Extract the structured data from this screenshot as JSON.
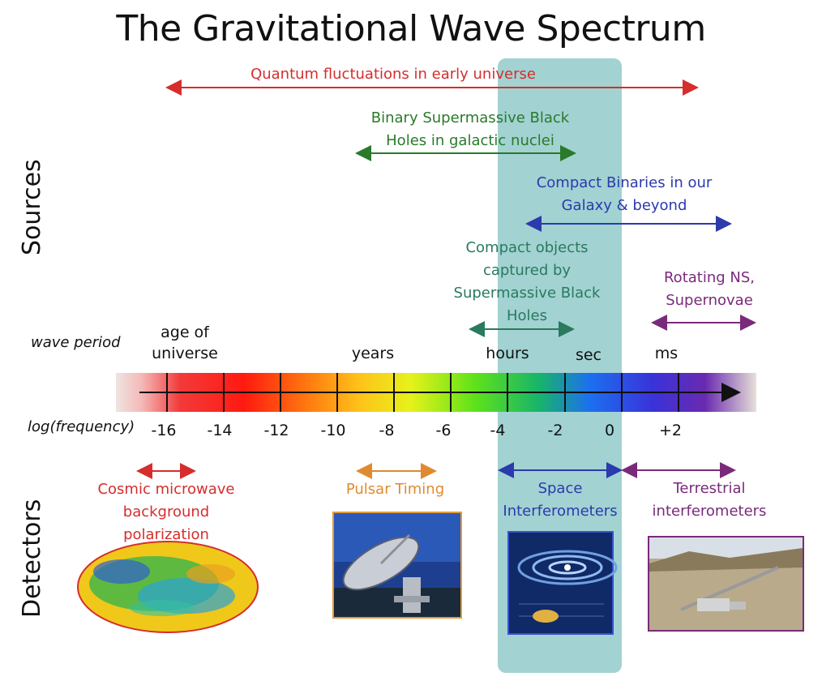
{
  "title": "The Gravitational Wave Spectrum",
  "axis_labels": {
    "sources": "Sources",
    "detectors": "Detectors",
    "wave_period": "wave period",
    "log_frequency": "log(frequency)"
  },
  "periods": [
    "age of\nuniverse",
    "years",
    "hours",
    "sec",
    "ms"
  ],
  "ticks": [
    "-16",
    "-14",
    "-12",
    "-10",
    "-8",
    "-6",
    "-4",
    "-2",
    "0",
    "+2"
  ],
  "sources": {
    "quantum": "Quantum fluctuations in early universe",
    "smbh": "Binary Supermassive Black\nHoles in galactic nuclei",
    "compact_binaries": "Compact Binaries in our\nGalaxy & beyond",
    "emri": "Compact objects\ncaptured by\nSupermassive Black\nHoles",
    "rotating_ns": "Rotating NS,\nSupernovae"
  },
  "detectors": {
    "cmb": "Cosmic microwave\nbackground\npolarization",
    "pulsar": "Pulsar Timing",
    "space": "Space\nInterferometers",
    "terrestrial": "Terrestrial\ninterferometers"
  },
  "colors": {
    "quantum": "#d62d2d",
    "smbh": "#2a7a2a",
    "compact_binaries": "#2b3aad",
    "emri": "#2a7a5e",
    "rotating_ns": "#7a2a7a",
    "cmb": "#d62d2d",
    "pulsar": "#e08a30",
    "space": "#2b3aad",
    "terrestrial": "#7a2a7a",
    "highlight": "#7ec0c0"
  }
}
